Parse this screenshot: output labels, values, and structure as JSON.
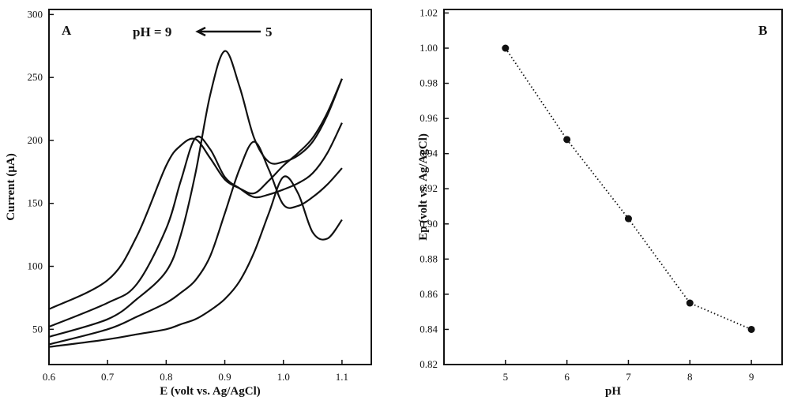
{
  "chart_data": [
    {
      "type": "line",
      "panel_label": "A",
      "annotations": [
        "pH = 9",
        "5"
      ],
      "x_label": "E (volt vs. Ag/AgCl)",
      "y_label": "Current (µA)",
      "x": [
        0.6,
        0.7,
        0.75,
        0.8,
        0.825,
        0.85,
        0.875,
        0.9,
        0.925,
        0.95,
        0.975,
        1.0,
        1.025,
        1.05,
        1.075,
        1.1
      ],
      "xlim": [
        0.6,
        1.15
      ],
      "xticks": [
        0.6,
        0.7,
        0.8,
        0.9,
        {
          "value": 1,
          "label": "1.0"
        },
        1.1
      ],
      "ylim": [
        22,
        304
      ],
      "yticks": [
        50,
        100,
        150,
        200,
        250,
        300
      ],
      "smooth": true,
      "series": [
        {
          "color": "#111111",
          "values": [
            36,
            42,
            46,
            50,
            54,
            58,
            65,
            74,
            88,
            111,
            142,
            171,
            158,
            127,
            122,
            137
          ]
        },
        {
          "color": "#111111",
          "values": [
            38,
            50,
            60,
            71,
            79,
            89,
            108,
            142,
            177,
            199,
            177,
            149,
            148,
            155,
            165,
            178
          ]
        },
        {
          "color": "#111111",
          "values": [
            44,
            58,
            74,
            96,
            125,
            174,
            236,
            271,
            243,
            202,
            183,
            183,
            188,
            199,
            220,
            249
          ]
        },
        {
          "color": "#111111",
          "values": [
            52,
            71,
            86,
            130,
            168,
            202,
            193,
            171,
            162,
            155,
            157,
            161,
            166,
            174,
            190,
            214
          ]
        },
        {
          "color": "#111111",
          "values": [
            66,
            89,
            124,
            180,
            196,
            201,
            186,
            169,
            162,
            158,
            168,
            180,
            190,
            202,
            222,
            249
          ]
        }
      ]
    },
    {
      "type": "line",
      "panel_label": "B",
      "x_label": "pH",
      "y_label": "Ep (volt vs. Ag/AgCl)",
      "x": [
        5,
        6,
        7,
        8,
        9
      ],
      "xlim": [
        4,
        9.5
      ],
      "xticks": [
        5,
        6,
        7,
        8,
        9
      ],
      "ylim": [
        0.82,
        1.022
      ],
      "yticks": [
        0.82,
        0.84,
        0.86,
        0.88,
        {
          "value": 0.9,
          "label": "0.90"
        },
        0.92,
        0.94,
        0.96,
        0.98,
        {
          "value": 1,
          "label": "1.00"
        },
        1.02
      ],
      "line_style": "dotted",
      "markers": true,
      "series": [
        {
          "color": "#111111",
          "values": [
            1.0,
            0.948,
            0.903,
            0.855,
            0.84
          ]
        }
      ]
    }
  ]
}
